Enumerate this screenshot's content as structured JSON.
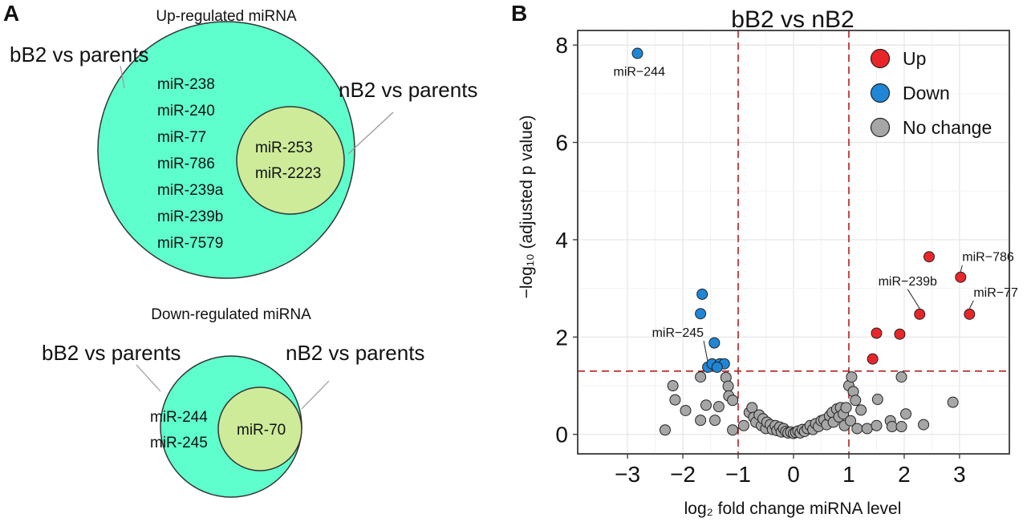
{
  "panel_a": {
    "letter": "A",
    "up": {
      "title": "Up-regulated miRNA",
      "outer_set": "bB2 vs parents",
      "inner_set": "nB2 vs parents",
      "outer_only": [
        "miR-238",
        "miR-240",
        "miR-77",
        "miR-786",
        "miR-239a",
        "miR-239b",
        "miR-7579"
      ],
      "shared": [
        "miR-253",
        "miR-2223"
      ]
    },
    "down": {
      "title": "Down-regulated miRNA",
      "outer_set": "bB2 vs parents",
      "inner_set": "nB2 vs parents",
      "outer_only": [
        "miR-244",
        "miR-245"
      ],
      "shared": [
        "miR-70"
      ]
    },
    "colors": {
      "outer": "#5effcc",
      "inner": "#cdeb99",
      "stroke": "#333333"
    }
  },
  "panel_b": {
    "letter": "B"
  },
  "chart_data": {
    "type": "scatter",
    "title": "bB2 vs nB2",
    "xlabel": "log₂ fold change miRNA level",
    "ylabel": "−log₁₀ (adjusted p value)",
    "xlim": [
      -3.9,
      3.9
    ],
    "ylim": [
      -0.4,
      8.3
    ],
    "xticks": [
      -3,
      -2,
      -1,
      0,
      1,
      2,
      3
    ],
    "yticks": [
      0,
      2,
      4,
      6,
      8
    ],
    "tick_labels_x": [
      "−3",
      "−2",
      "−1",
      "0",
      "1",
      "2",
      "3"
    ],
    "tick_labels_y": [
      "0",
      "2",
      "4",
      "6",
      "8"
    ],
    "grid": true,
    "thresholds": {
      "x": [
        -1,
        1
      ],
      "y": 1.3
    },
    "legend_position": "top-right",
    "legend": [
      {
        "name": "Up",
        "color": "#e8262a"
      },
      {
        "name": "Down",
        "color": "#1f86d6"
      },
      {
        "name": "No change",
        "color": "#a6a6a6"
      }
    ],
    "series": [
      {
        "name": "Up",
        "color": "#e8262a",
        "points": [
          {
            "x": 2.45,
            "y": 3.65
          },
          {
            "x": 3.02,
            "y": 3.23,
            "label": "miR−786"
          },
          {
            "x": 3.18,
            "y": 2.47,
            "label": "miR−77"
          },
          {
            "x": 2.28,
            "y": 2.47,
            "label": "miR−239b"
          },
          {
            "x": 1.5,
            "y": 2.08
          },
          {
            "x": 1.92,
            "y": 2.06
          },
          {
            "x": 1.43,
            "y": 1.55
          }
        ]
      },
      {
        "name": "Down",
        "color": "#1f86d6",
        "points": [
          {
            "x": -2.82,
            "y": 7.83,
            "label": "miR−244"
          },
          {
            "x": -1.65,
            "y": 2.88
          },
          {
            "x": -1.68,
            "y": 2.48
          },
          {
            "x": -1.43,
            "y": 1.88
          },
          {
            "x": -1.55,
            "y": 1.38,
            "label": "miR−245"
          },
          {
            "x": -1.47,
            "y": 1.45
          },
          {
            "x": -1.33,
            "y": 1.45
          },
          {
            "x": -1.25,
            "y": 1.45
          },
          {
            "x": -1.38,
            "y": 1.38
          }
        ]
      },
      {
        "name": "No change",
        "color": "#a6a6a6",
        "points": [
          {
            "x": -2.32,
            "y": 0.09
          },
          {
            "x": -2.18,
            "y": 1.0
          },
          {
            "x": -2.14,
            "y": 0.71
          },
          {
            "x": -1.95,
            "y": 0.49
          },
          {
            "x": -1.68,
            "y": 1.18
          },
          {
            "x": -1.68,
            "y": 0.29
          },
          {
            "x": -1.58,
            "y": 0.6
          },
          {
            "x": -1.42,
            "y": 0.29
          },
          {
            "x": -1.35,
            "y": 0.57
          },
          {
            "x": -1.22,
            "y": 1.17
          },
          {
            "x": -1.18,
            "y": 0.99
          },
          {
            "x": -1.17,
            "y": 0.79
          },
          {
            "x": -1.1,
            "y": 0.7
          },
          {
            "x": -1.1,
            "y": 0.09
          },
          {
            "x": -0.9,
            "y": 0.18
          },
          {
            "x": -0.8,
            "y": 0.45
          },
          {
            "x": -0.75,
            "y": 0.55
          },
          {
            "x": -0.72,
            "y": 0.35
          },
          {
            "x": -0.68,
            "y": 0.25
          },
          {
            "x": -0.62,
            "y": 0.4
          },
          {
            "x": -0.58,
            "y": 0.18
          },
          {
            "x": -0.55,
            "y": 0.32
          },
          {
            "x": -0.5,
            "y": 0.12
          },
          {
            "x": -0.48,
            "y": 0.25
          },
          {
            "x": -0.42,
            "y": 0.2
          },
          {
            "x": -0.38,
            "y": 0.1
          },
          {
            "x": -0.33,
            "y": 0.18
          },
          {
            "x": -0.3,
            "y": 0.08
          },
          {
            "x": -0.25,
            "y": 0.15
          },
          {
            "x": -0.22,
            "y": 0.05
          },
          {
            "x": -0.18,
            "y": 0.12
          },
          {
            "x": -0.14,
            "y": 0.06
          },
          {
            "x": -0.1,
            "y": 0.03
          },
          {
            "x": -0.05,
            "y": 0.05
          },
          {
            "x": 0.0,
            "y": 0.02
          },
          {
            "x": 0.04,
            "y": 0.04
          },
          {
            "x": 0.08,
            "y": 0.07
          },
          {
            "x": 0.12,
            "y": 0.03
          },
          {
            "x": 0.16,
            "y": 0.1
          },
          {
            "x": 0.2,
            "y": 0.06
          },
          {
            "x": 0.25,
            "y": 0.12
          },
          {
            "x": 0.3,
            "y": 0.18
          },
          {
            "x": 0.35,
            "y": 0.1
          },
          {
            "x": 0.4,
            "y": 0.22
          },
          {
            "x": 0.45,
            "y": 0.16
          },
          {
            "x": 0.5,
            "y": 0.28
          },
          {
            "x": 0.55,
            "y": 0.3
          },
          {
            "x": 0.6,
            "y": 0.2
          },
          {
            "x": 0.65,
            "y": 0.38
          },
          {
            "x": 0.7,
            "y": 0.45
          },
          {
            "x": 0.72,
            "y": 0.25
          },
          {
            "x": 0.78,
            "y": 0.52
          },
          {
            "x": 0.82,
            "y": 0.36
          },
          {
            "x": 0.85,
            "y": 0.55
          },
          {
            "x": 0.9,
            "y": 0.42
          },
          {
            "x": 0.95,
            "y": 0.55
          },
          {
            "x": 0.92,
            "y": 0.18
          },
          {
            "x": 1.0,
            "y": 1.0
          },
          {
            "x": 1.03,
            "y": 0.28
          },
          {
            "x": 1.05,
            "y": 1.18
          },
          {
            "x": 1.08,
            "y": 0.88
          },
          {
            "x": 1.12,
            "y": 0.7
          },
          {
            "x": 1.15,
            "y": 0.12
          },
          {
            "x": 1.22,
            "y": 0.5
          },
          {
            "x": 1.33,
            "y": 0.12
          },
          {
            "x": 1.52,
            "y": 0.72
          },
          {
            "x": 1.5,
            "y": 0.18
          },
          {
            "x": 1.75,
            "y": 0.28
          },
          {
            "x": 1.78,
            "y": 0.16
          },
          {
            "x": 1.95,
            "y": 0.16
          },
          {
            "x": 1.95,
            "y": 1.18
          },
          {
            "x": 2.03,
            "y": 0.42
          },
          {
            "x": 2.35,
            "y": 0.2
          },
          {
            "x": 2.88,
            "y": 0.66
          }
        ]
      }
    ]
  }
}
